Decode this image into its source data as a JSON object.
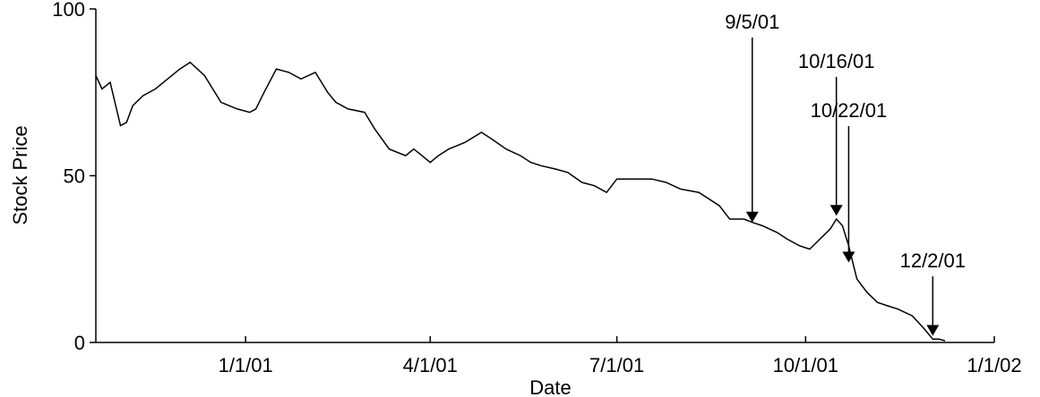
{
  "chart_data": {
    "type": "line",
    "xlabel": "Date",
    "ylabel": "Stock Price",
    "ylim": [
      0,
      100
    ],
    "yticks": [
      0,
      50,
      100
    ],
    "xlim": [
      "2000-10-20",
      "2002-01-01"
    ],
    "xticks": [
      {
        "date": "2001-01-01",
        "label": "1/1/01"
      },
      {
        "date": "2001-04-01",
        "label": "4/1/01"
      },
      {
        "date": "2001-07-01",
        "label": "7/1/01"
      },
      {
        "date": "2001-10-01",
        "label": "10/1/01"
      },
      {
        "date": "2002-01-01",
        "label": "1/1/02"
      }
    ],
    "grid": false,
    "series": [
      {
        "x": [
          "2000-10-20",
          "2000-10-23",
          "2000-10-27",
          "2000-11-01",
          "2000-11-04",
          "2000-11-07",
          "2000-11-12",
          "2000-11-18",
          "2000-11-24",
          "2000-11-30",
          "2000-12-05",
          "2000-12-12",
          "2000-12-20",
          "2000-12-28",
          "2001-01-03",
          "2001-01-06",
          "2001-01-10",
          "2001-01-16",
          "2001-01-22",
          "2001-01-28",
          "2001-02-04",
          "2001-02-10",
          "2001-02-14",
          "2001-02-20",
          "2001-02-28",
          "2001-03-05",
          "2001-03-12",
          "2001-03-20",
          "2001-03-24",
          "2001-03-28",
          "2001-04-01",
          "2001-04-05",
          "2001-04-10",
          "2001-04-18",
          "2001-04-26",
          "2001-05-01",
          "2001-05-08",
          "2001-05-15",
          "2001-05-20",
          "2001-05-25",
          "2001-06-01",
          "2001-06-07",
          "2001-06-14",
          "2001-06-20",
          "2001-06-26",
          "2001-07-01",
          "2001-07-09",
          "2001-07-18",
          "2001-07-25",
          "2001-08-01",
          "2001-08-10",
          "2001-08-20",
          "2001-08-25",
          "2001-09-01",
          "2001-09-05",
          "2001-09-10",
          "2001-09-17",
          "2001-09-22",
          "2001-09-28",
          "2001-10-03",
          "2001-10-08",
          "2001-10-13",
          "2001-10-16",
          "2001-10-19",
          "2001-10-22",
          "2001-10-26",
          "2001-10-31",
          "2001-11-05",
          "2001-11-10",
          "2001-11-15",
          "2001-11-22",
          "2001-11-28",
          "2001-12-02",
          "2001-12-05",
          "2001-12-08"
        ],
        "y": [
          80,
          76,
          78,
          65,
          66,
          71,
          74,
          76,
          79,
          82,
          84,
          80,
          72,
          70,
          69,
          70,
          75,
          82,
          81,
          79,
          81,
          75,
          72,
          70,
          69,
          64,
          58,
          56,
          58,
          56,
          54,
          56,
          58,
          60,
          63,
          61,
          58,
          56,
          54,
          53,
          52,
          51,
          48,
          47,
          45,
          49,
          49,
          49,
          48,
          46,
          45,
          41,
          37,
          37,
          36,
          35,
          33,
          31,
          29,
          28,
          31,
          34,
          37,
          35,
          29,
          19,
          15,
          12,
          11,
          10,
          8,
          4,
          1,
          1,
          0.5
        ]
      }
    ],
    "annotations": [
      {
        "label": "9/5/01",
        "date": "2001-09-05",
        "value": 36
      },
      {
        "label": "10/16/01",
        "date": "2001-10-16",
        "value": 38
      },
      {
        "label": "10/22/01",
        "date": "2001-10-22",
        "value": 24
      },
      {
        "label": "12/2/01",
        "date": "2001-12-02",
        "value": 2
      }
    ]
  }
}
